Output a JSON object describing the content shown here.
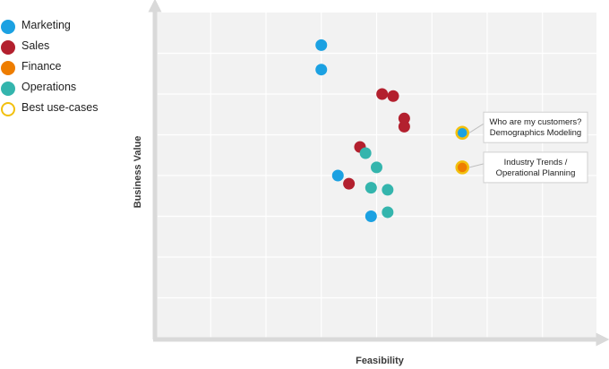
{
  "legend": {
    "items": [
      {
        "label": "Marketing",
        "color": "#1ba1e2"
      },
      {
        "label": "Sales",
        "color": "#b3202e"
      },
      {
        "label": "Finance",
        "color": "#ee7d00"
      },
      {
        "label": "Operations",
        "color": "#34b5ad"
      },
      {
        "label": "Best use-cases",
        "color": "#f2c00e"
      }
    ]
  },
  "chart_data": {
    "type": "scatter",
    "xlabel": "Feasibility",
    "ylabel": "Business Value",
    "xlim": [
      0,
      8
    ],
    "ylim": [
      0,
      8
    ],
    "grid": true,
    "legend_position": "top-left",
    "series": [
      {
        "name": "Marketing",
        "color": "#1ba1e2",
        "points": [
          [
            3.0,
            7.2
          ],
          [
            3.0,
            6.6
          ],
          [
            3.3,
            4.0
          ],
          [
            3.9,
            3.0
          ]
        ]
      },
      {
        "name": "Sales",
        "color": "#b3202e",
        "points": [
          [
            4.1,
            6.0
          ],
          [
            4.3,
            5.95
          ],
          [
            4.5,
            5.4
          ],
          [
            4.5,
            5.2
          ],
          [
            3.7,
            4.7
          ],
          [
            3.5,
            3.8
          ]
        ]
      },
      {
        "name": "Finance",
        "color": "#ee7d00",
        "points": []
      },
      {
        "name": "Operations",
        "color": "#34b5ad",
        "points": [
          [
            3.8,
            4.55
          ],
          [
            4.0,
            4.2
          ],
          [
            3.9,
            3.7
          ],
          [
            4.2,
            3.65
          ],
          [
            4.2,
            3.1
          ]
        ]
      }
    ],
    "highlights": [
      {
        "x": 5.55,
        "y": 5.05,
        "fill": "#1ba1e2",
        "ring": "#f2c00e",
        "lines": [
          "Who are my customers?",
          "Demographics Modeling"
        ]
      },
      {
        "x": 5.55,
        "y": 4.2,
        "fill": "#ee7d00",
        "ring": "#f2c00e",
        "lines": [
          "Industry Trends /",
          "Operational Planning"
        ]
      }
    ]
  }
}
